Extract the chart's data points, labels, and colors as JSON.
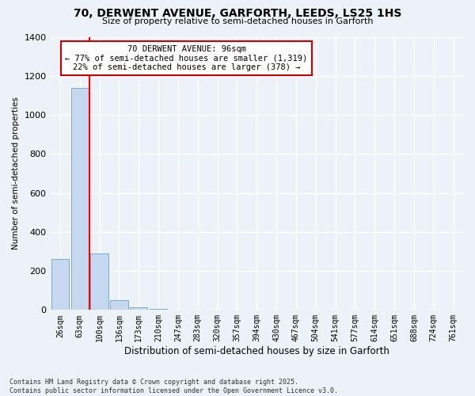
{
  "title": "70, DERWENT AVENUE, GARFORTH, LEEDS, LS25 1HS",
  "subtitle": "Size of property relative to semi-detached houses in Garforth",
  "xlabel": "Distribution of semi-detached houses by size in Garforth",
  "ylabel": "Number of semi-detached properties",
  "categories": [
    "26sqm",
    "63sqm",
    "100sqm",
    "136sqm",
    "173sqm",
    "210sqm",
    "247sqm",
    "283sqm",
    "320sqm",
    "357sqm",
    "394sqm",
    "430sqm",
    "467sqm",
    "504sqm",
    "541sqm",
    "577sqm",
    "614sqm",
    "651sqm",
    "688sqm",
    "724sqm",
    "761sqm"
  ],
  "values": [
    260,
    1140,
    290,
    50,
    15,
    5,
    0,
    0,
    0,
    0,
    0,
    0,
    0,
    0,
    0,
    0,
    0,
    0,
    0,
    0,
    0
  ],
  "bar_color": "#c5d8ef",
  "bar_edge_color": "#7aadd4",
  "property_line_x": 1.5,
  "annotation_text": "70 DERWENT AVENUE: 96sqm\n← 77% of semi-detached houses are smaller (1,319)\n22% of semi-detached houses are larger (378) →",
  "ylim": [
    0,
    1400
  ],
  "yticks": [
    0,
    200,
    400,
    600,
    800,
    1000,
    1200,
    1400
  ],
  "footnote": "Contains HM Land Registry data © Crown copyright and database right 2025.\nContains public sector information licensed under the Open Government Licence v3.0.",
  "bg_color": "#edf1f8",
  "grid_color": "#ffffff",
  "title_fontsize": 10,
  "subtitle_fontsize": 8,
  "annotation_box_color": "#cc0000"
}
